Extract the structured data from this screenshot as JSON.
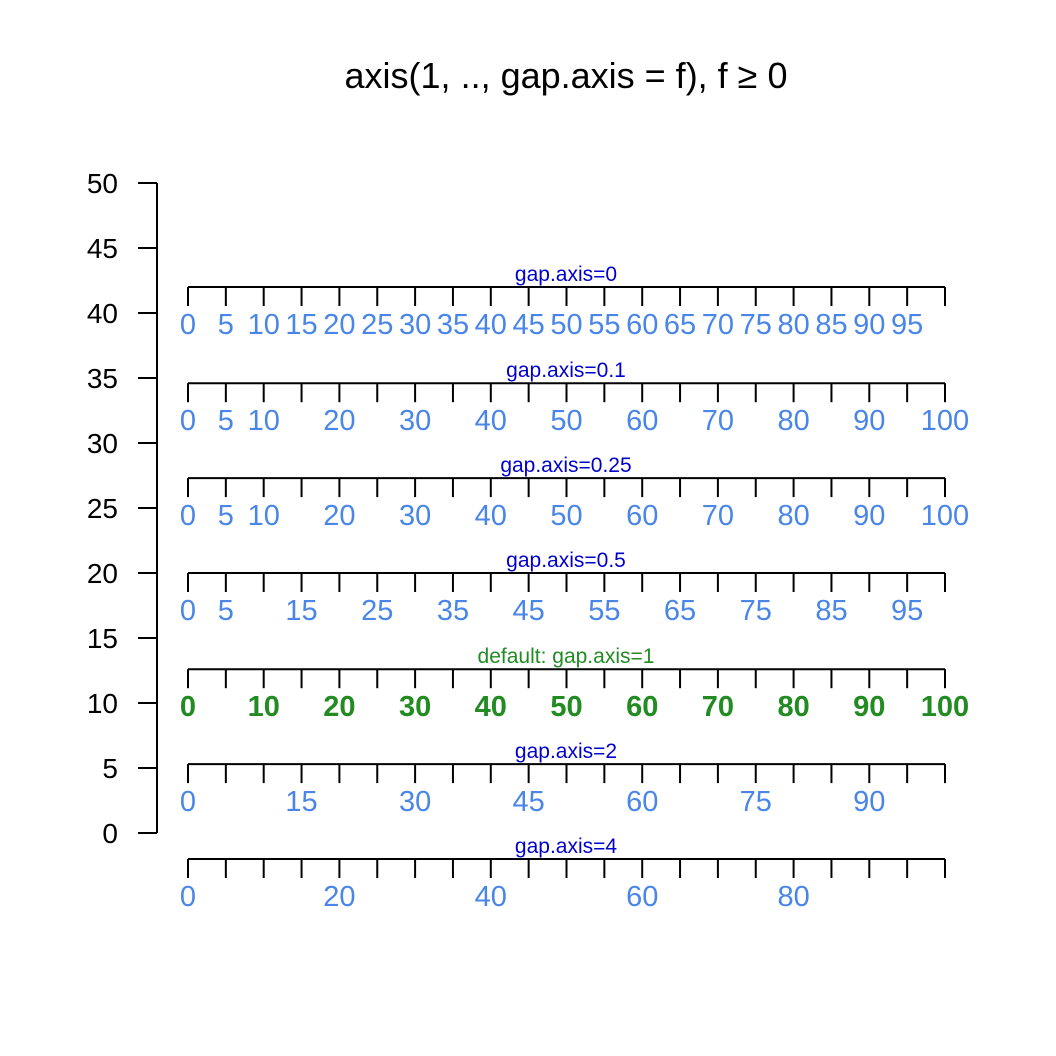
{
  "chart_data": {
    "type": "other",
    "title": "axis(1, .., gap.axis = f),  f ≥ 0",
    "colors": {
      "axis_line": "#000000",
      "label_blue": "#4A86E8",
      "caption_blue": "#0000CD",
      "default_green": "#228B22"
    },
    "y_axis": {
      "ylim": [
        0,
        50
      ],
      "ticks": [
        0,
        5,
        10,
        15,
        20,
        25,
        30,
        35,
        40,
        45,
        50
      ]
    },
    "x_axis": {
      "xlim": [
        0,
        100
      ],
      "ticks": [
        0,
        5,
        10,
        15,
        20,
        25,
        30,
        35,
        40,
        45,
        50,
        55,
        60,
        65,
        70,
        75,
        80,
        85,
        90,
        95,
        100
      ]
    },
    "rows": [
      {
        "caption": "gap.axis=0",
        "y": 42,
        "style": "normal",
        "labels": [
          0,
          5,
          10,
          15,
          20,
          25,
          30,
          35,
          40,
          45,
          50,
          55,
          60,
          65,
          70,
          75,
          80,
          85,
          90,
          95
        ]
      },
      {
        "caption": "gap.axis=0.1",
        "y": 34.6,
        "style": "normal",
        "labels": [
          0,
          5,
          10,
          20,
          30,
          40,
          50,
          60,
          70,
          80,
          90,
          100
        ]
      },
      {
        "caption": "gap.axis=0.25",
        "y": 27.3,
        "style": "normal",
        "labels": [
          0,
          5,
          10,
          20,
          30,
          40,
          50,
          60,
          70,
          80,
          90,
          100
        ]
      },
      {
        "caption": "gap.axis=0.5",
        "y": 20,
        "style": "normal",
        "labels": [
          0,
          5,
          15,
          25,
          35,
          45,
          55,
          65,
          75,
          85,
          95
        ]
      },
      {
        "caption": "default:  gap.axis=1",
        "y": 12.6,
        "style": "default",
        "labels": [
          0,
          10,
          20,
          30,
          40,
          50,
          60,
          70,
          80,
          90,
          100
        ]
      },
      {
        "caption": "gap.axis=2",
        "y": 5.3,
        "style": "normal",
        "labels": [
          0,
          15,
          30,
          45,
          60,
          75,
          90
        ]
      },
      {
        "caption": "gap.axis=4",
        "y": -2,
        "style": "normal",
        "labels": [
          0,
          20,
          40,
          60,
          80
        ]
      }
    ]
  }
}
